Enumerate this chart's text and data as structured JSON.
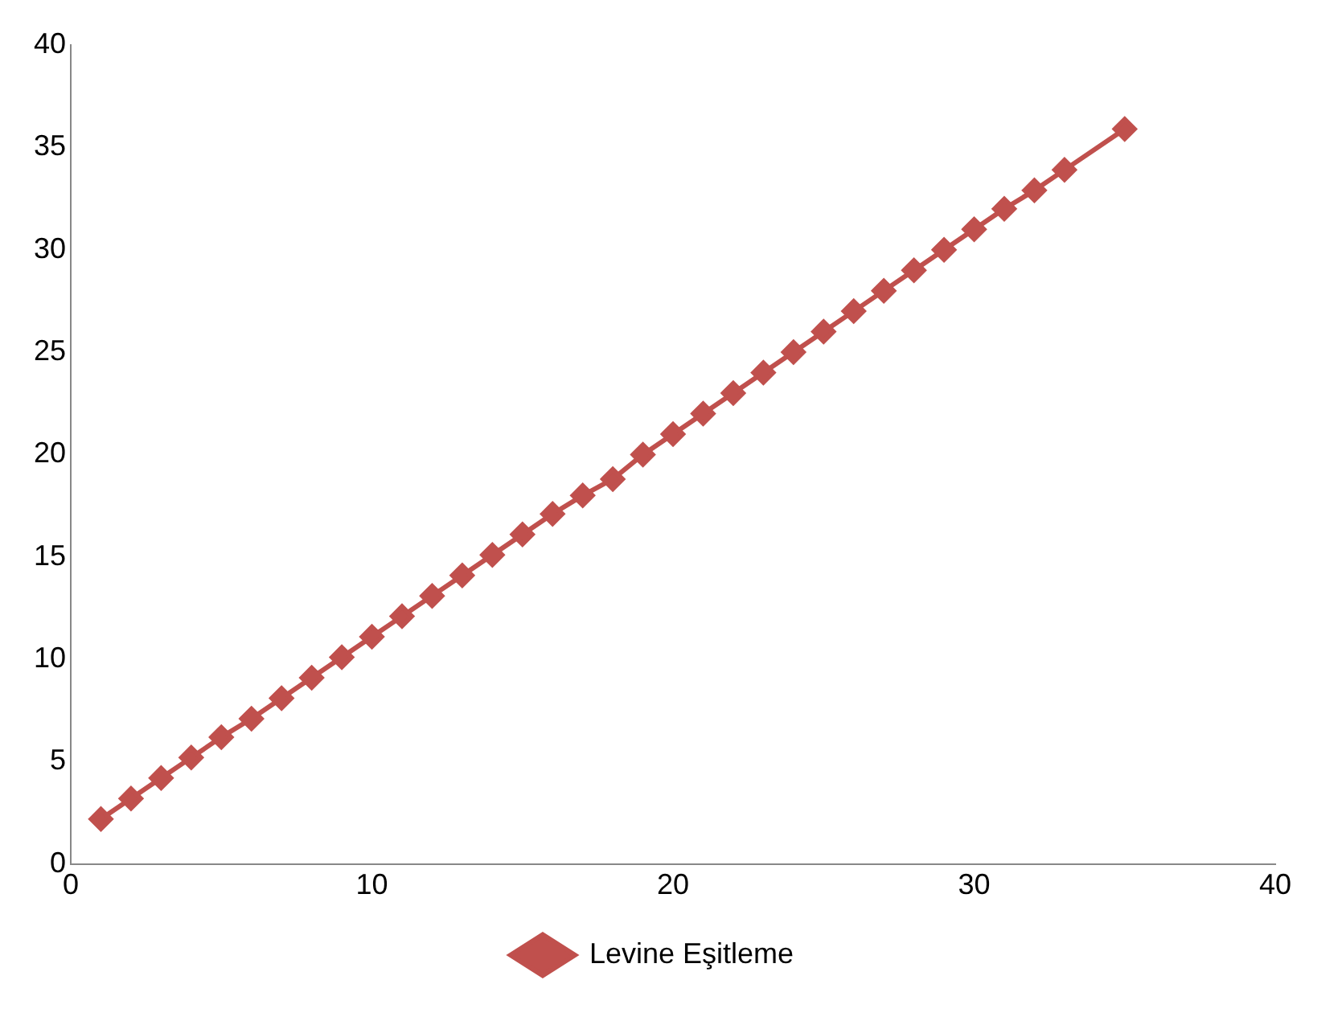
{
  "chart_data": {
    "type": "line",
    "x": [
      1,
      2,
      3,
      4,
      5,
      6,
      7,
      8,
      9,
      10,
      11,
      12,
      13,
      14,
      15,
      16,
      17,
      18,
      19,
      20,
      21,
      22,
      23,
      24,
      25,
      26,
      27,
      28,
      29,
      30,
      31,
      32,
      33,
      35
    ],
    "series": [
      {
        "name": "Levine Eşitleme",
        "color": "#c0504d",
        "values": [
          2.2,
          3.2,
          4.2,
          5.2,
          6.2,
          7.1,
          8.1,
          9.1,
          10.1,
          11.1,
          12.1,
          13.1,
          14.1,
          15.1,
          16.1,
          17.1,
          18,
          18.8,
          20,
          21,
          22,
          23,
          24,
          25,
          26,
          27,
          28,
          29,
          30,
          31,
          32,
          32.9,
          33.9,
          35.9
        ]
      }
    ],
    "xlim": [
      0,
      40
    ],
    "xticks": [
      0,
      10,
      20,
      30,
      40
    ],
    "ylim": [
      0,
      40
    ],
    "yticks": [
      0,
      5,
      10,
      15,
      20,
      25,
      30,
      35,
      40
    ],
    "grid": false,
    "legend": "bottom",
    "marker": "diamond",
    "line_style": "solid"
  }
}
